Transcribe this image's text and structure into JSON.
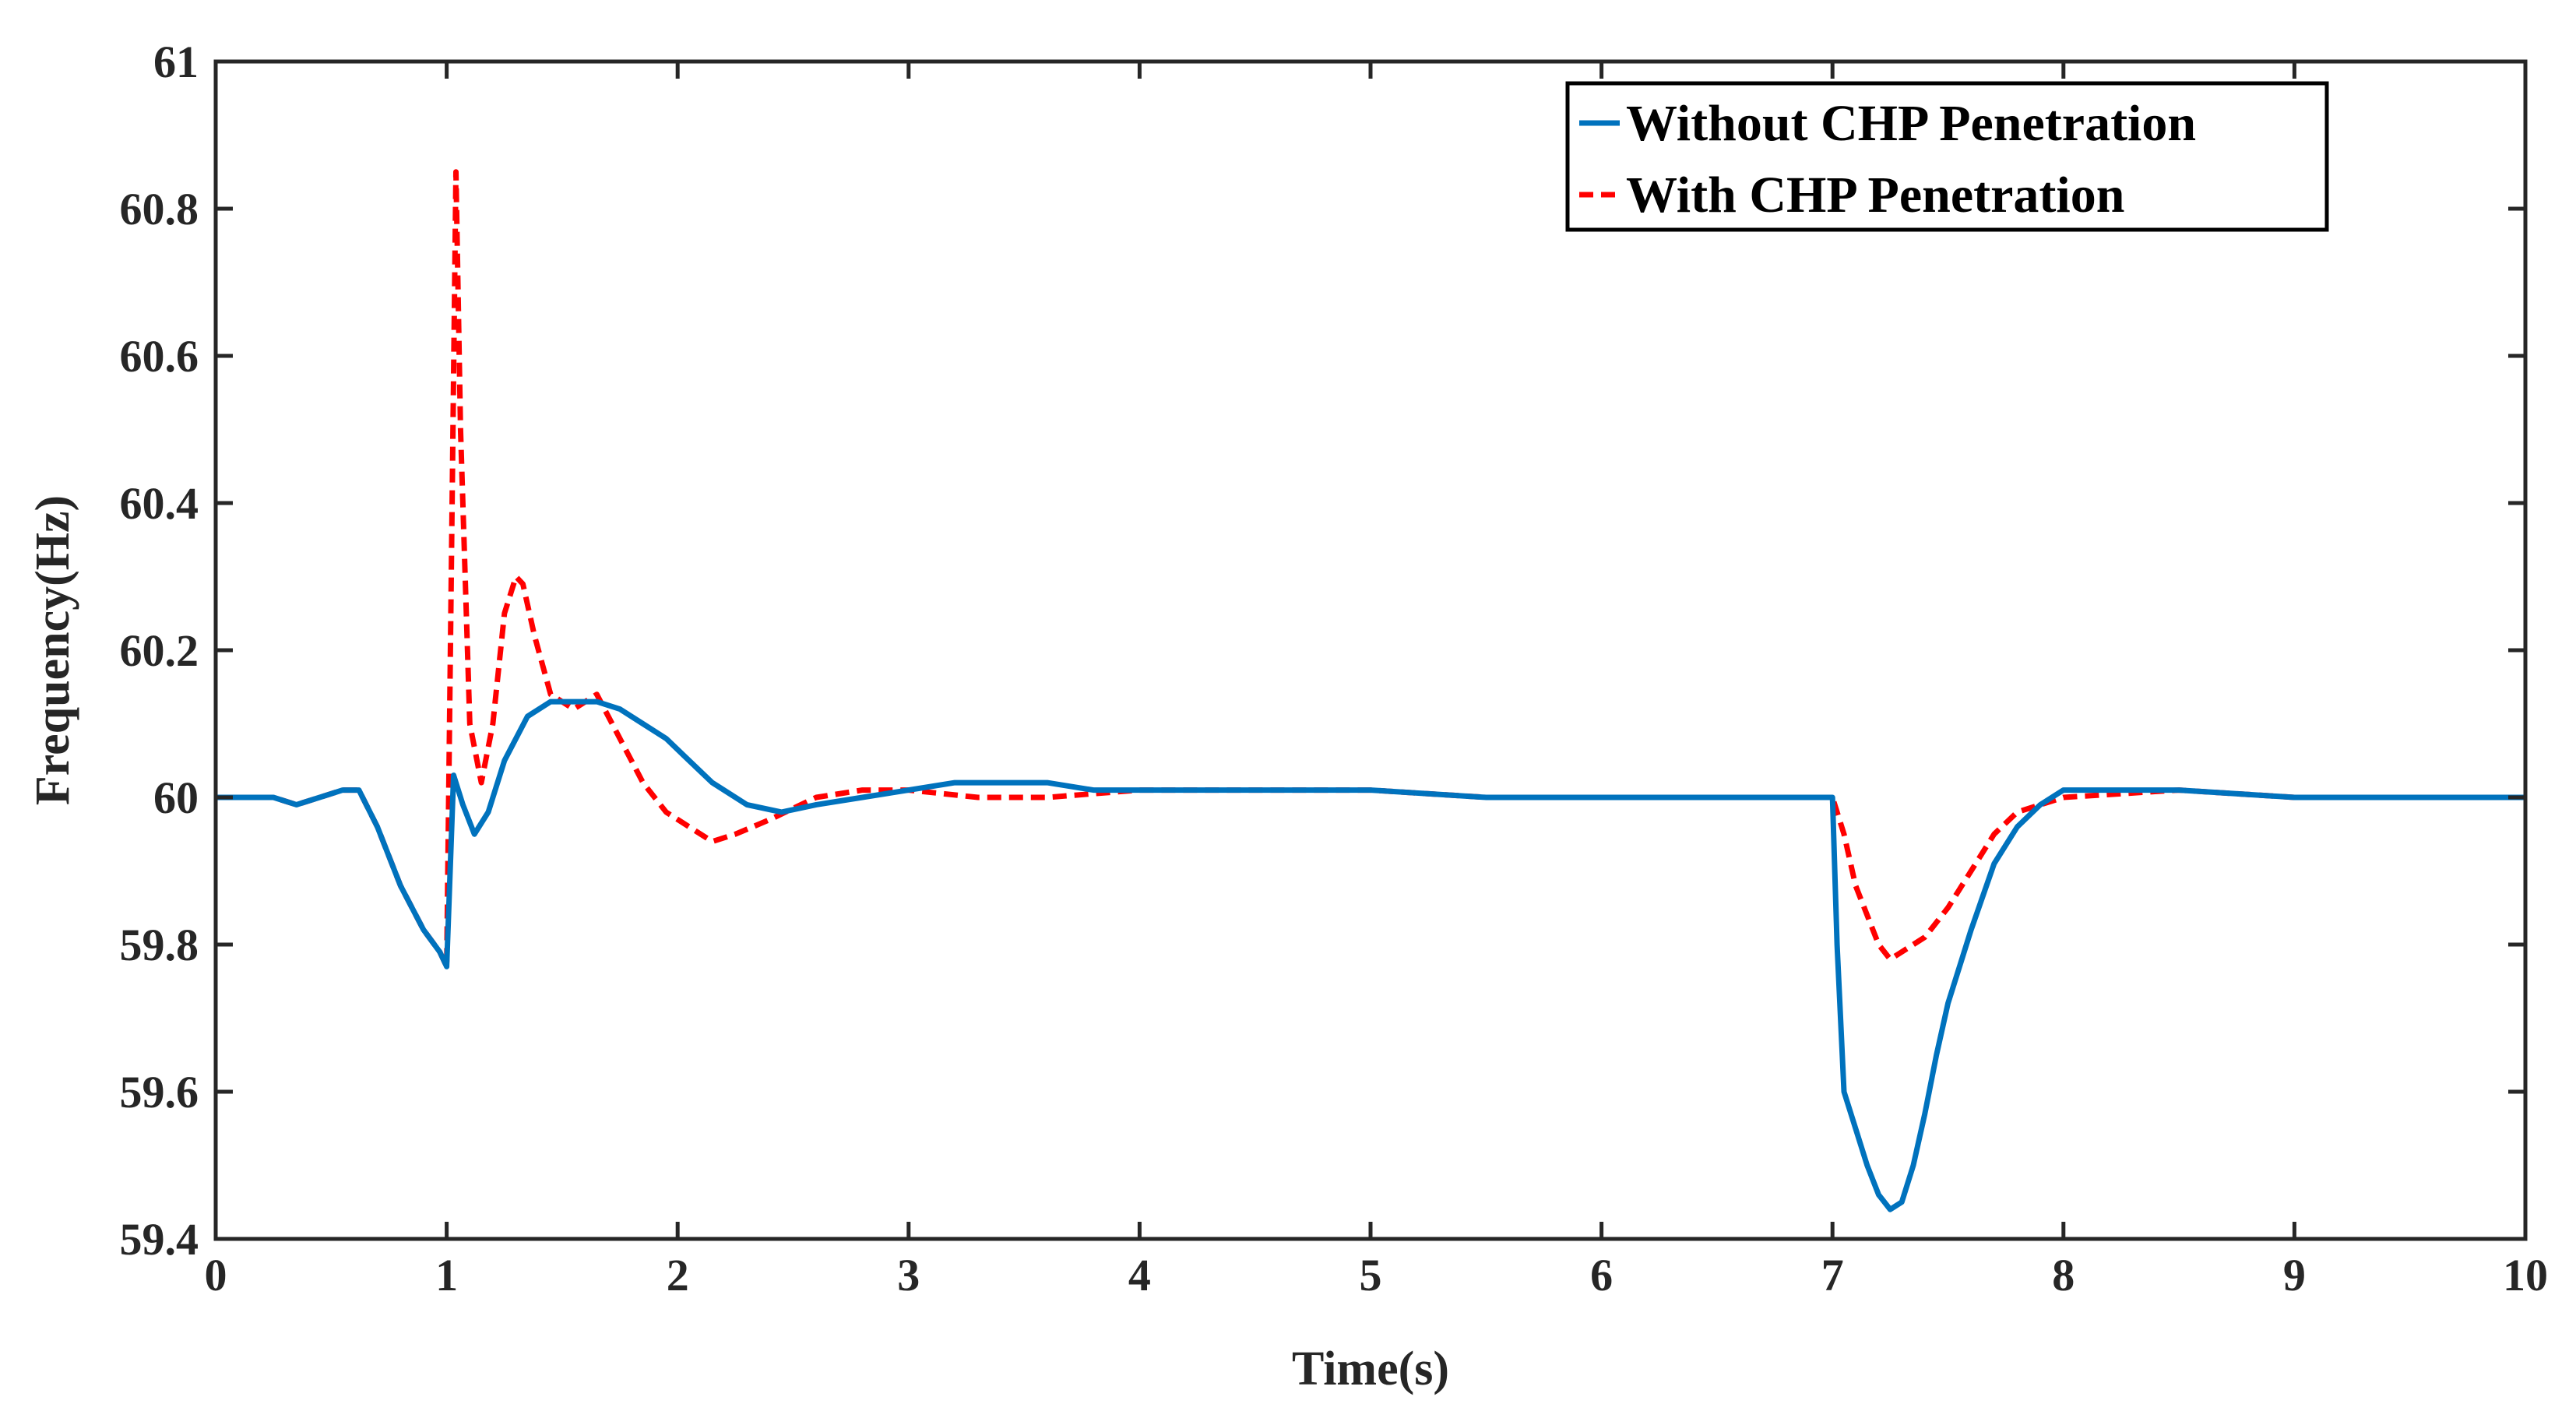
{
  "chart_data": {
    "type": "line",
    "xlabel": "Time(s)",
    "ylabel": "Frequency(Hz)",
    "xlim": [
      0,
      10
    ],
    "ylim": [
      59.4,
      61
    ],
    "x_ticks": [
      "0",
      "1",
      "2",
      "3",
      "4",
      "5",
      "6",
      "7",
      "8",
      "9",
      "10"
    ],
    "y_ticks": [
      "59.4",
      "59.6",
      "59.8",
      "60",
      "60.2",
      "60.4",
      "60.6",
      "60.8",
      "61"
    ],
    "grid": false,
    "legend_position": "top-right",
    "series": [
      {
        "name": "Without CHP Penetration",
        "color": "#0072BD",
        "style": "solid",
        "x": [
          0,
          0.25,
          0.35,
          0.45,
          0.55,
          0.62,
          0.7,
          0.8,
          0.9,
          0.97,
          1.0,
          1.03,
          1.07,
          1.12,
          1.18,
          1.25,
          1.35,
          1.45,
          1.55,
          1.65,
          1.75,
          1.85,
          1.95,
          2.05,
          2.15,
          2.3,
          2.45,
          2.6,
          2.8,
          3.0,
          3.2,
          3.4,
          3.6,
          3.8,
          4.0,
          4.5,
          5.0,
          5.5,
          6.0,
          6.5,
          6.9,
          7.0,
          7.02,
          7.05,
          7.1,
          7.15,
          7.2,
          7.25,
          7.3,
          7.35,
          7.4,
          7.45,
          7.5,
          7.6,
          7.7,
          7.8,
          7.9,
          8.0,
          8.2,
          8.5,
          9.0,
          9.5,
          10.0
        ],
        "y": [
          60.0,
          60.0,
          59.99,
          60.0,
          60.01,
          60.01,
          59.96,
          59.88,
          59.82,
          59.79,
          59.77,
          60.03,
          59.99,
          59.95,
          59.98,
          60.05,
          60.11,
          60.13,
          60.13,
          60.13,
          60.12,
          60.1,
          60.08,
          60.05,
          60.02,
          59.99,
          59.98,
          59.99,
          60.0,
          60.01,
          60.02,
          60.02,
          60.02,
          60.01,
          60.01,
          60.01,
          60.01,
          60.0,
          60.0,
          60.0,
          60.0,
          60.0,
          59.8,
          59.6,
          59.55,
          59.5,
          59.46,
          59.44,
          59.45,
          59.5,
          59.57,
          59.65,
          59.72,
          59.82,
          59.91,
          59.96,
          59.99,
          60.01,
          60.01,
          60.01,
          60.0,
          60.0,
          60.0
        ]
      },
      {
        "name": "With CHP Penetration",
        "color": "#FF0000",
        "style": "dashed",
        "x": [
          0,
          0.25,
          0.35,
          0.45,
          0.55,
          0.62,
          0.7,
          0.8,
          0.9,
          0.97,
          1.0,
          1.02,
          1.04,
          1.06,
          1.1,
          1.15,
          1.2,
          1.25,
          1.3,
          1.33,
          1.38,
          1.45,
          1.55,
          1.65,
          1.75,
          1.85,
          1.95,
          2.05,
          2.15,
          2.25,
          2.4,
          2.6,
          2.8,
          3.0,
          3.3,
          3.6,
          4.0,
          4.5,
          5.0,
          5.5,
          6.0,
          6.5,
          7.0,
          7.05,
          7.1,
          7.2,
          7.25,
          7.3,
          7.4,
          7.5,
          7.6,
          7.7,
          7.8,
          8.0,
          8.5,
          9.0,
          10.0
        ],
        "y": [
          60.0,
          60.0,
          59.99,
          60.0,
          60.01,
          60.01,
          59.96,
          59.88,
          59.82,
          59.79,
          59.77,
          60.3,
          60.85,
          60.5,
          60.1,
          60.02,
          60.1,
          60.25,
          60.3,
          60.29,
          60.22,
          60.14,
          60.12,
          60.14,
          60.08,
          60.02,
          59.98,
          59.96,
          59.94,
          59.95,
          59.97,
          60.0,
          60.01,
          60.01,
          60.0,
          60.0,
          60.01,
          60.01,
          60.01,
          60.0,
          60.0,
          60.0,
          60.0,
          59.95,
          59.88,
          59.8,
          59.78,
          59.79,
          59.81,
          59.85,
          59.9,
          59.95,
          59.98,
          60.0,
          60.01,
          60.0,
          60.0
        ]
      }
    ]
  }
}
